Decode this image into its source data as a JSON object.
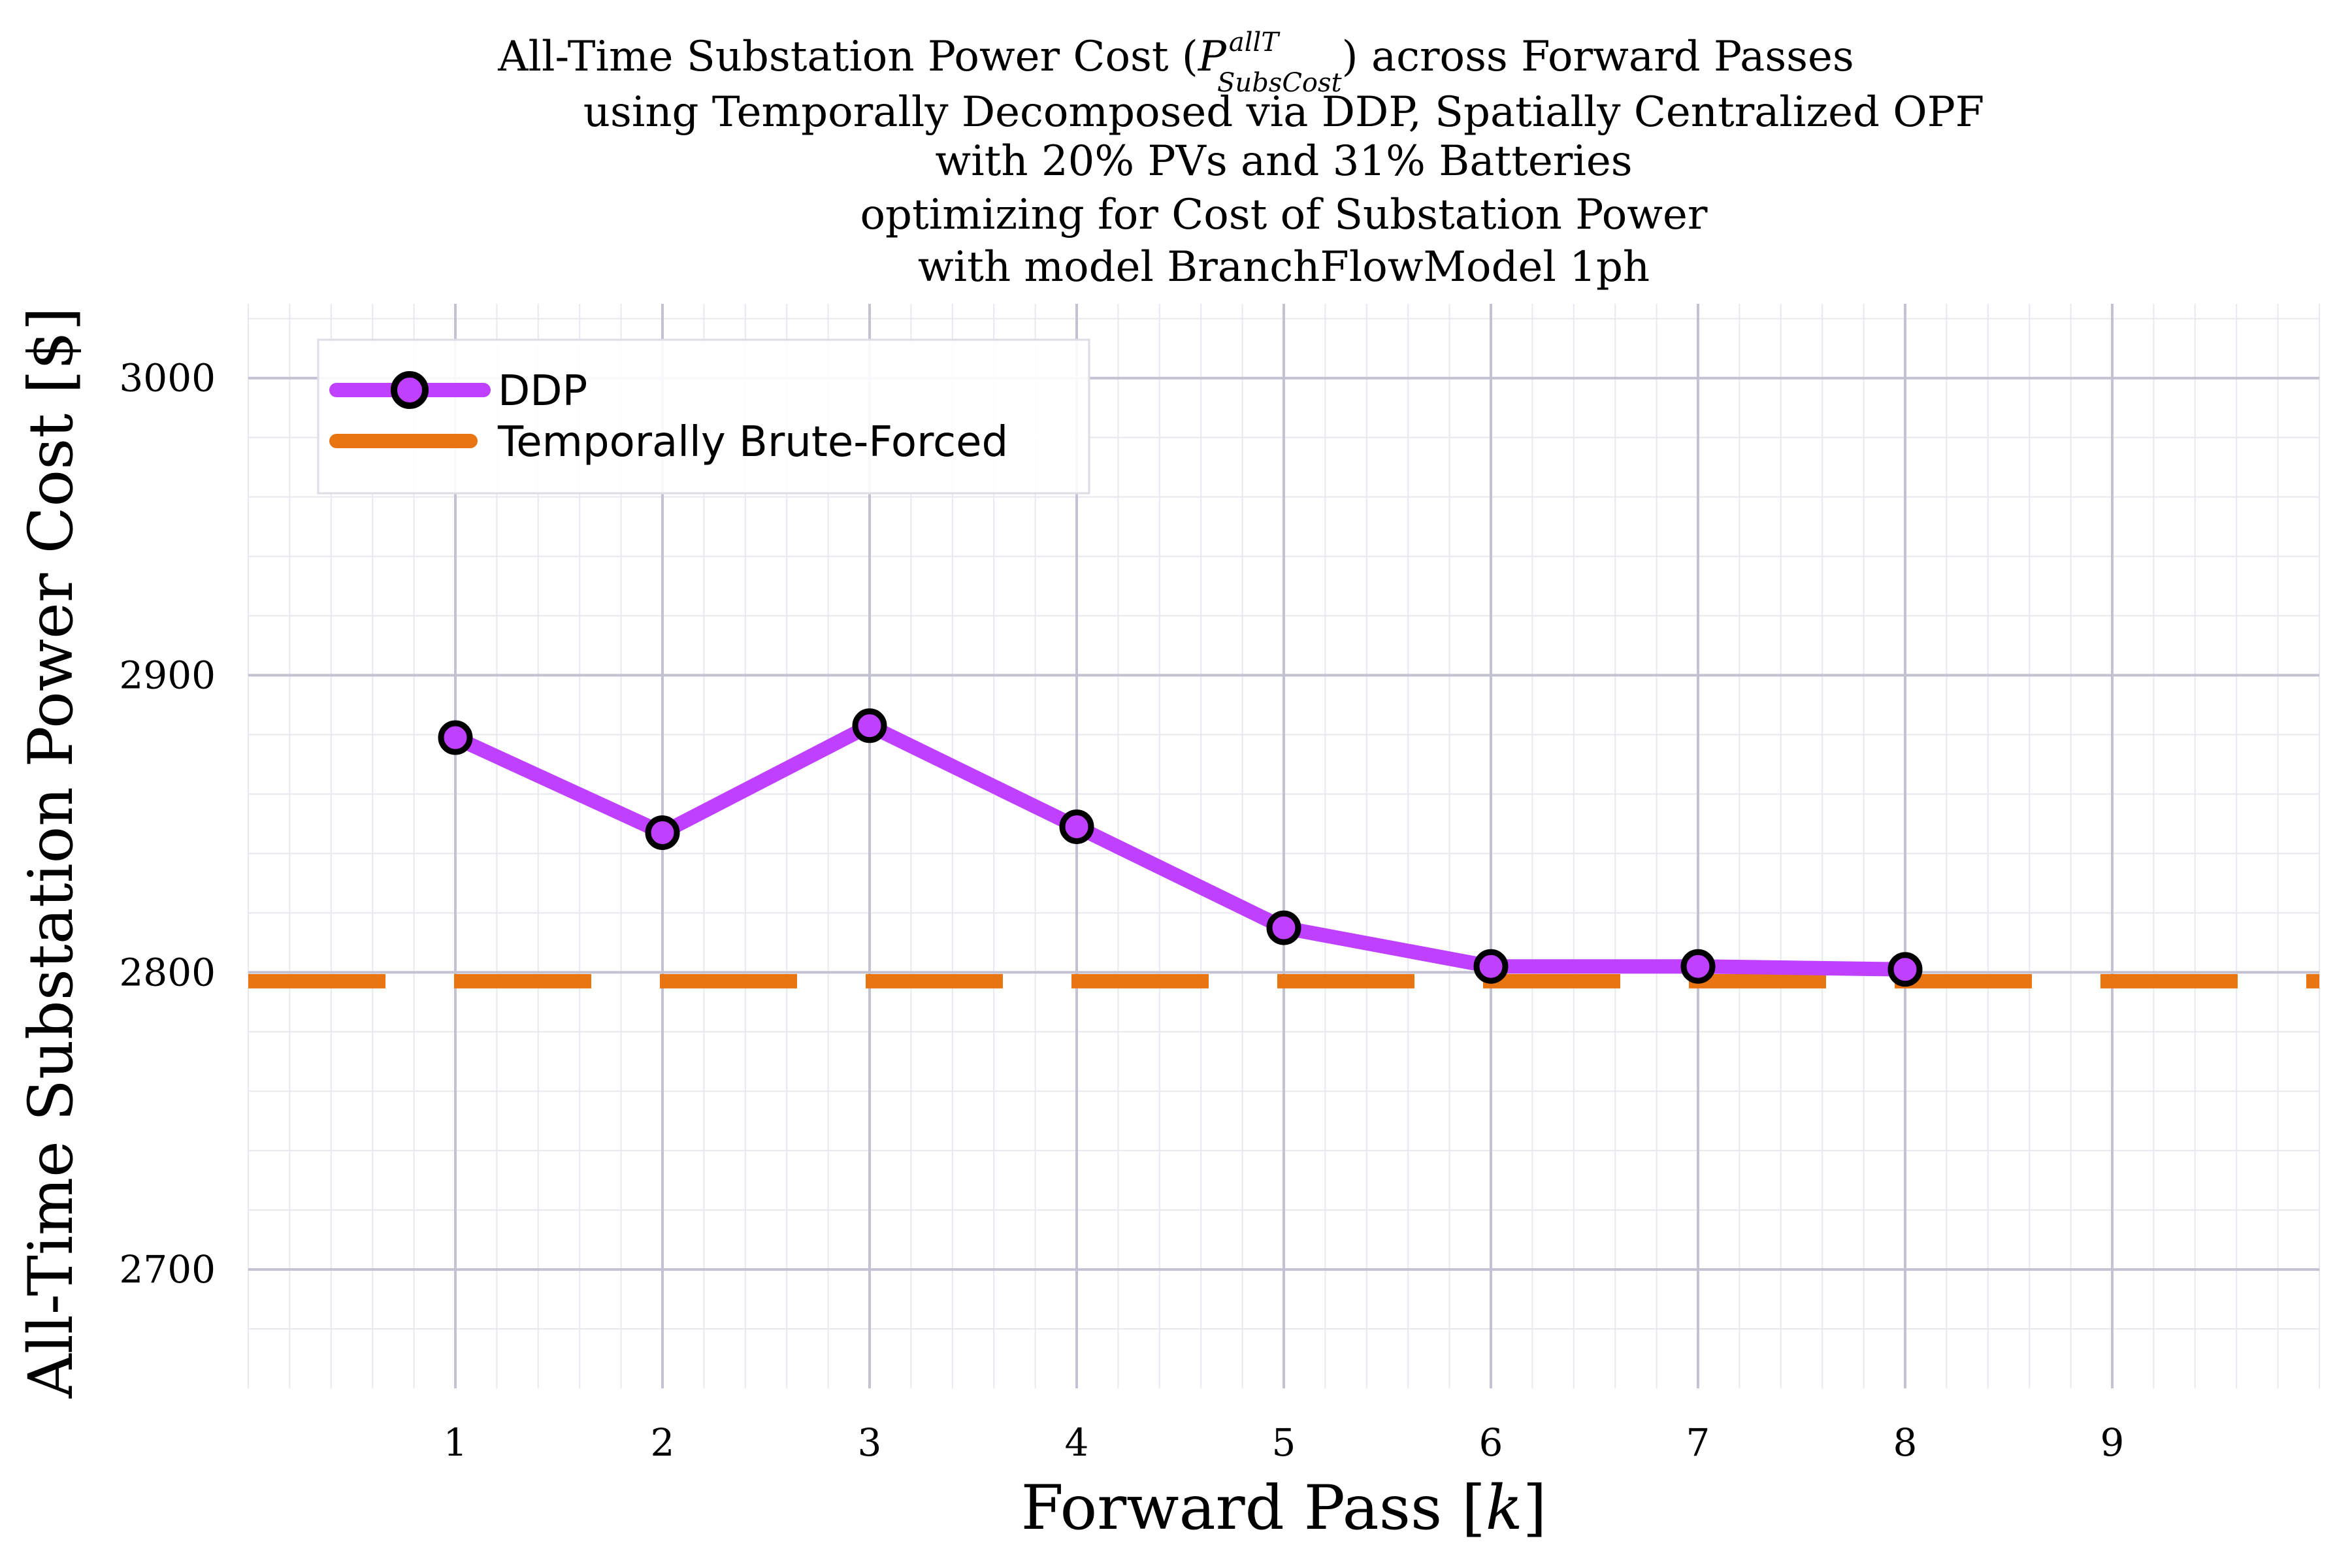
{
  "chart_data": {
    "type": "line",
    "title_lines": [
      "All-Time Substation Power Cost (",
      ") across Forward Passes",
      "using Temporally Decomposed via DDP, Spatially Centralized OPF",
      "with 20% PVs and 31% Batteries",
      "optimizing for Cost of Substation Power",
      "with model BranchFlowModel 1ph"
    ],
    "title_math": {
      "base": "P",
      "sup": "allT",
      "sub": "SubsCost"
    },
    "xlabel": "Forward Pass [",
    "xlabel_var": "k",
    "xlabel_close": "]",
    "ylabel": "All-Time Substation Power Cost [$]",
    "xlim": [
      0,
      10
    ],
    "ylim": [
      2660,
      3025
    ],
    "xticks": [
      1,
      2,
      3,
      4,
      5,
      6,
      7,
      8,
      9
    ],
    "yticks": [
      2700,
      2800,
      2900,
      3000
    ],
    "grid": true,
    "legend_position": "top-left",
    "series": [
      {
        "name": "DDP",
        "style": "line-with-markers",
        "color": "#bf40ff",
        "x": [
          1,
          2,
          3,
          4,
          5,
          6,
          7,
          8
        ],
        "y": [
          2879,
          2847,
          2883,
          2849,
          2815,
          2802,
          2802,
          2801
        ]
      },
      {
        "name": "Temporally Brute-Forced",
        "style": "dashed-horizontal",
        "color": "#e87511",
        "y": 2797
      }
    ]
  }
}
